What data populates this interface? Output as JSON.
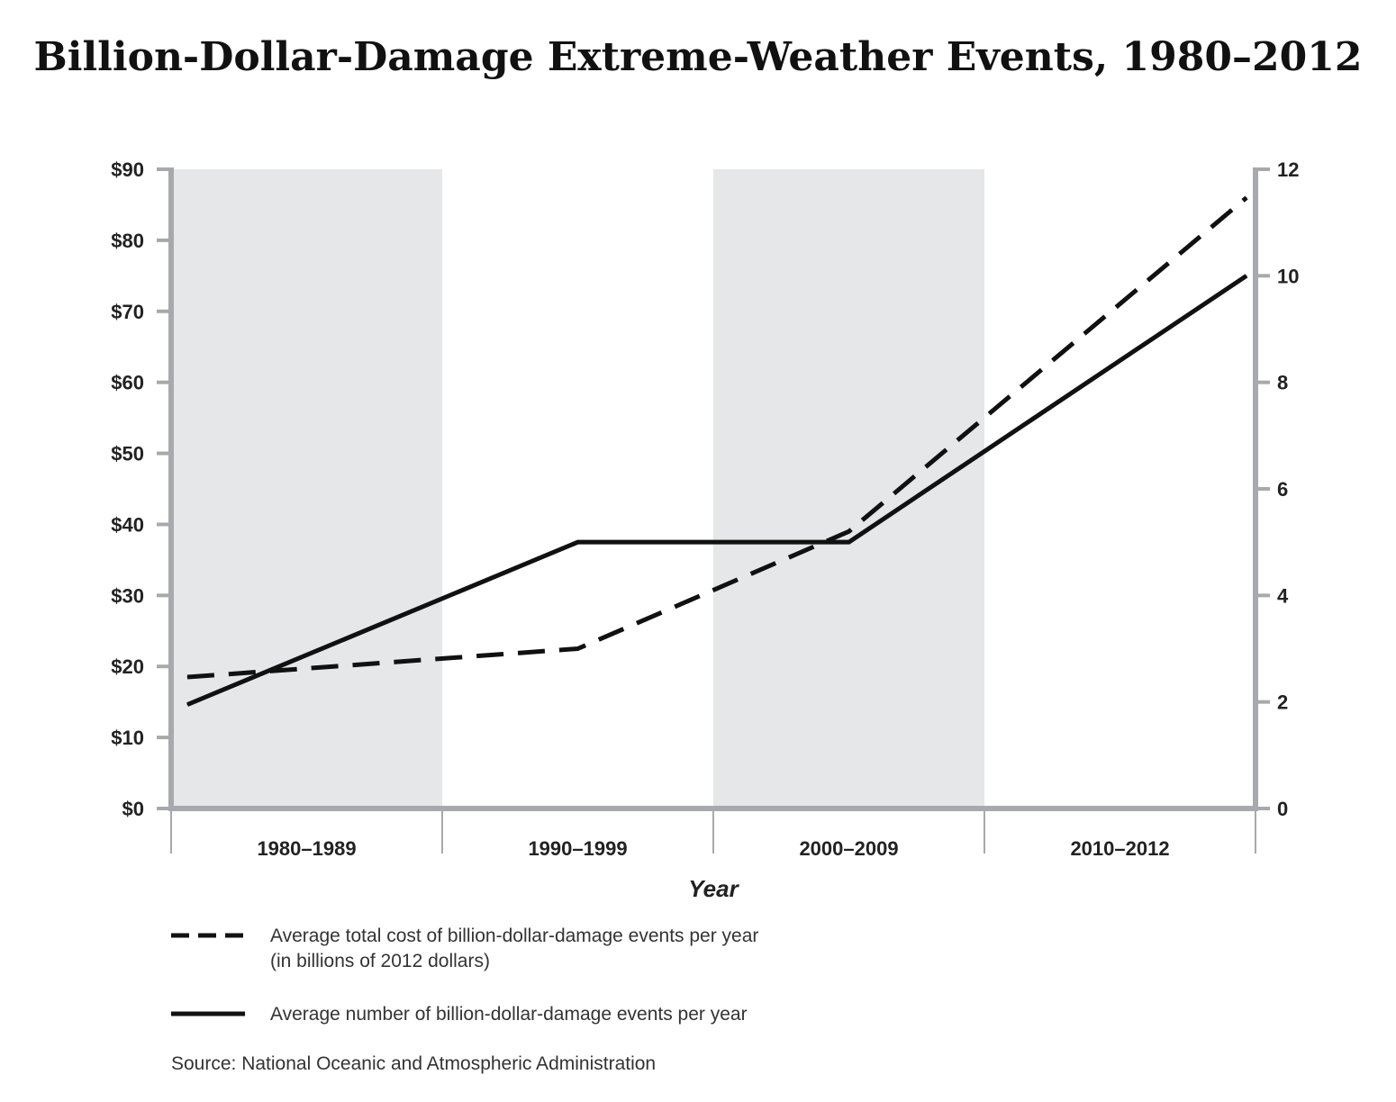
{
  "chart_data": {
    "type": "line",
    "title": "Billion-Dollar-Damage Extreme-Weather Events, 1980–2012",
    "categories": [
      "1980–1989",
      "1990–1999",
      "2000–2009",
      "2010–2012"
    ],
    "xlabel": "Year",
    "ylabel_left": "",
    "ylabel_right": "",
    "ylim_left": [
      0,
      90
    ],
    "ylim_right": [
      0,
      12
    ],
    "left_ticks": [
      "$0",
      "$10",
      "$20",
      "$30",
      "$40",
      "$50",
      "$60",
      "$70",
      "$80",
      "$90"
    ],
    "right_ticks": [
      "0",
      "2",
      "4",
      "6",
      "8",
      "10",
      "12"
    ],
    "shaded_bands": [
      "1980–1989",
      "2000–2009"
    ],
    "series": [
      {
        "name": "Average total cost of billion-dollar-damage events per year",
        "name_line2": "(in billions of 2012 dollars)",
        "axis": "left",
        "style": "dashed",
        "values": [
          18.5,
          22.5,
          39,
          86
        ]
      },
      {
        "name": "Average number of billion-dollar-damage events per year",
        "axis": "right",
        "style": "solid",
        "values": [
          1.95,
          5,
          5,
          10
        ]
      }
    ],
    "source": "Source: National Oceanic and Atmospheric Administration"
  },
  "colors": {
    "line": "#111111",
    "band": "#e6e7e8",
    "axis": "#a7a9ac"
  }
}
